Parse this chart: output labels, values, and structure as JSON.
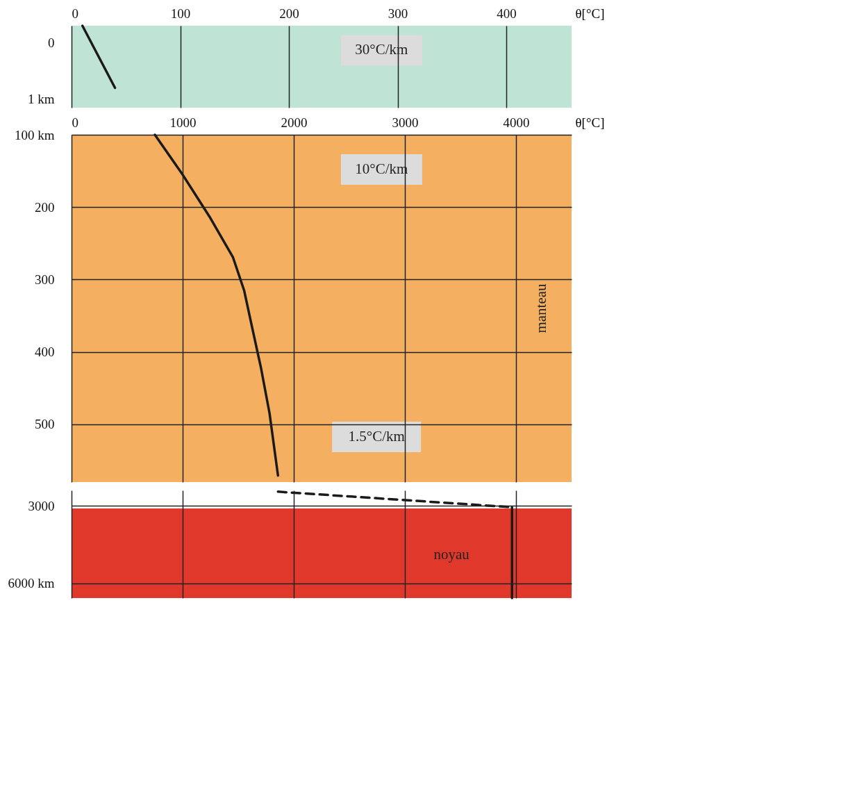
{
  "chart_data": [
    {
      "type": "line",
      "xlabel": "θ[°C]",
      "xlim": [
        0,
        460
      ],
      "ylim": [
        1.15,
        -0.3
      ],
      "xticks": [
        0,
        100,
        200,
        300,
        400
      ],
      "yticks": [
        0,
        {
          "value": 1,
          "label": "1 km"
        }
      ],
      "grid": "x",
      "bands": [
        {
          "axis": "y",
          "from": -0.3,
          "to": 1.15,
          "color": "#bfe3d4"
        }
      ],
      "series": [
        {
          "color": "#1a1a1a",
          "line_style": "solid",
          "x": [
            10,
            40
          ],
          "values": [
            -0.3,
            0.8
          ]
        }
      ],
      "annotations": [
        "30°C/km"
      ]
    },
    {
      "type": "line",
      "xlabel": "θ[°C]",
      "xlim": [
        0,
        4500
      ],
      "ylim": [
        580,
        100
      ],
      "xticks": [
        0,
        1000,
        2000,
        3000,
        4000
      ],
      "yticks": [
        {
          "value": 100,
          "label": "100 km"
        },
        200,
        300,
        400,
        500
      ],
      "grid": true,
      "bands": [
        {
          "axis": "y",
          "from": 100,
          "to": 580,
          "color": "#f4b060"
        }
      ],
      "series": [
        {
          "color": "#1a1a1a",
          "line_style": "solid",
          "x": [
            750,
            995,
            1249,
            1452,
            1553,
            1629,
            1706,
            1782,
            1858
          ],
          "values": [
            100,
            154,
            215,
            269,
            315,
            369,
            423,
            485,
            571
          ]
        }
      ],
      "annotations": [
        "10°C/km",
        "1.5°C/km",
        "manteau"
      ]
    },
    {
      "type": "line",
      "xlim": [
        0,
        4500
      ],
      "ylim": [
        6570,
        2400
      ],
      "xticks": [
        0,
        1000,
        2000,
        3000,
        4000
      ],
      "yticks": [
        3000,
        {
          "value": 6000,
          "label": "6000 km"
        }
      ],
      "tick_labels": "y",
      "grid": true,
      "bands": [
        {
          "axis": "y",
          "from": 3100,
          "to": 6570,
          "color": "#e0382b"
        }
      ],
      "series": [
        {
          "color": "#1a1a1a",
          "line_style": "dashed",
          "x": [
            1858,
            3964
          ],
          "values": [
            2450,
            3050
          ]
        },
        {
          "color": "#1a1a1a",
          "line_style": "solid",
          "x": [
            3964,
            3964
          ],
          "values": [
            3050,
            6570
          ]
        }
      ],
      "annotations": [
        "noyau"
      ]
    }
  ]
}
